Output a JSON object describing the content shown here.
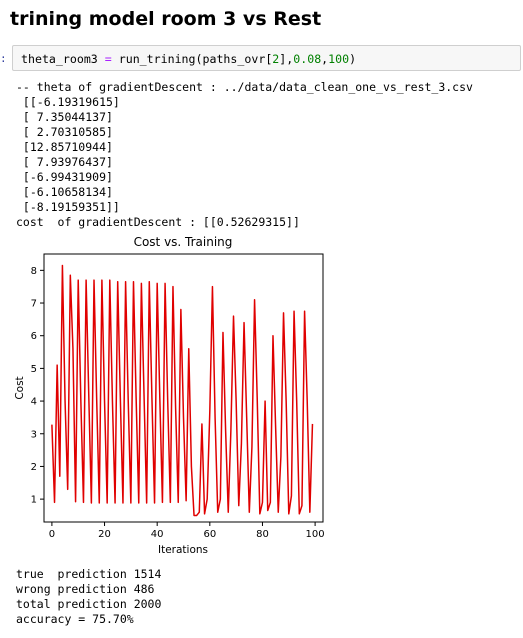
{
  "heading": "trining model room 3 vs Rest",
  "cell": {
    "prompt": ":",
    "code": {
      "var": "theta_room3",
      "eq": "=",
      "call": "run_trining(paths_ovr[",
      "idx": "2",
      "mid": "],",
      "lr": "0.08",
      "comma": ",",
      "iters": "100",
      "close": ")"
    }
  },
  "output": {
    "header": "-- theta of gradientDescent : ../data/data_clean_one_vs_rest_3.csv",
    "theta_lines": [
      " [[-6.19319615]",
      " [ 7.35044137]",
      " [ 2.70310585]",
      " [12.85710944]",
      " [ 7.93976437]",
      " [-6.99431909]",
      " [-6.10658134]",
      " [-8.19159351]]"
    ],
    "cost_line": "cost  of gradientDescent : [[0.52629315]]"
  },
  "results": {
    "true_line": "true  prediction 1514",
    "wrong_line": "wrong prediction 486",
    "total_line": "total prediction 2000",
    "accuracy_line": "accuracy = 75.70%"
  },
  "chart_data": {
    "type": "line",
    "title": "Cost vs. Training",
    "xlabel": "Iterations",
    "ylabel": "Cost",
    "xlim": [
      -3,
      103
    ],
    "ylim": [
      0.3,
      8.5
    ],
    "xticks": [
      0,
      20,
      40,
      60,
      80,
      100
    ],
    "yticks": [
      1,
      2,
      3,
      4,
      5,
      6,
      7,
      8
    ],
    "grid": false,
    "series": [
      {
        "color": "#e00000",
        "x": [
          0,
          1,
          2,
          3,
          4,
          5,
          6,
          7,
          8,
          9,
          10,
          11,
          12,
          13,
          14,
          15,
          16,
          17,
          18,
          19,
          20,
          21,
          22,
          23,
          24,
          25,
          26,
          27,
          28,
          29,
          30,
          31,
          32,
          33,
          34,
          35,
          36,
          37,
          38,
          39,
          40,
          41,
          42,
          43,
          44,
          45,
          46,
          47,
          48,
          49,
          50,
          51,
          52,
          53,
          54,
          55,
          56,
          57,
          58,
          59,
          60,
          61,
          62,
          63,
          64,
          65,
          66,
          67,
          68,
          69,
          70,
          71,
          72,
          73,
          74,
          75,
          76,
          77,
          78,
          79,
          80,
          81,
          82,
          83,
          84,
          85,
          86,
          87,
          88,
          89,
          90,
          91,
          92,
          93,
          94,
          95,
          96,
          97,
          98,
          99
        ],
        "y": [
          3.28,
          0.9,
          5.1,
          1.7,
          8.15,
          4.0,
          1.3,
          7.85,
          5.6,
          0.92,
          7.7,
          4.0,
          0.9,
          7.7,
          4.2,
          0.88,
          7.7,
          4.1,
          0.88,
          7.7,
          4.0,
          0.88,
          7.7,
          4.0,
          0.88,
          7.65,
          4.1,
          0.88,
          7.65,
          4.0,
          0.88,
          7.65,
          4.1,
          0.88,
          7.6,
          4.2,
          0.88,
          7.65,
          4.1,
          0.88,
          7.6,
          4.1,
          0.9,
          7.6,
          4.0,
          0.9,
          7.5,
          3.8,
          0.9,
          6.8,
          3.5,
          0.95,
          5.6,
          2.0,
          0.5,
          0.5,
          0.6,
          3.3,
          0.55,
          1.0,
          3.7,
          7.5,
          3.5,
          0.6,
          1.0,
          6.1,
          3.1,
          0.6,
          3.1,
          6.6,
          4.0,
          0.8,
          2.7,
          6.4,
          3.5,
          0.6,
          2.6,
          7.1,
          4.1,
          0.55,
          0.9,
          4.0,
          0.65,
          0.9,
          6.0,
          3.2,
          0.6,
          2.3,
          6.7,
          4.0,
          0.55,
          1.1,
          6.75,
          4.0,
          0.55,
          0.8,
          6.75,
          4.0,
          0.6,
          3.3
        ]
      }
    ]
  }
}
